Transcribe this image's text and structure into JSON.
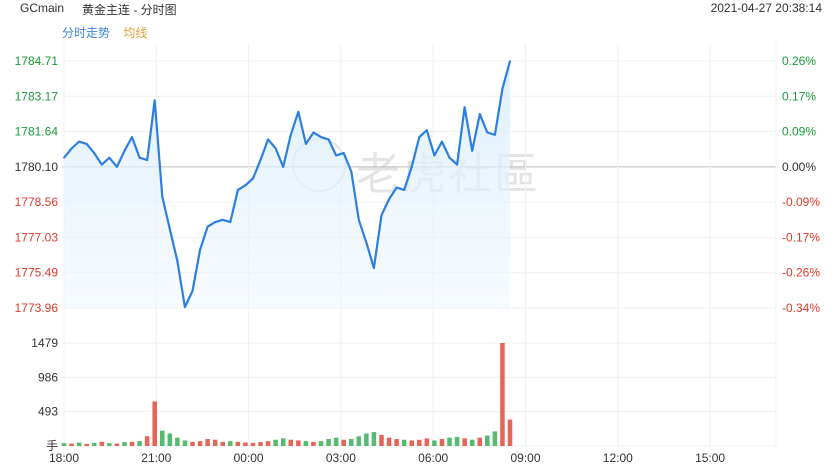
{
  "header": {
    "symbol": "GCmain",
    "name": "黄金主连 - 分时图",
    "datetime": "2021-04-27 20:38:14"
  },
  "tabs": [
    {
      "label": "分时走势",
      "color": "#3f86d8"
    },
    {
      "label": "均线",
      "color": "#e0a33a"
    }
  ],
  "watermark": "老虎社區",
  "colors": {
    "up": "#1a9b3a",
    "down": "#e03a2c",
    "line": "#2c7fe0",
    "vol_up": "#e04a3c",
    "vol_down": "#3aae58"
  },
  "chart_data": {
    "type": "line",
    "prev_close": 1780.1,
    "ylim": [
      1773.96,
      1784.71
    ],
    "y_ticks_left": [
      "1784.71",
      "1783.17",
      "1781.64",
      "1780.10",
      "1778.56",
      "1777.03",
      "1775.49",
      "1773.96"
    ],
    "y_ticks_right": [
      "0.26%",
      "0.17%",
      "0.09%",
      "0.00%",
      "-0.09%",
      "-0.17%",
      "-0.26%",
      "-0.34%"
    ],
    "x_ticks": [
      "18:00",
      "21:00",
      "00:00",
      "03:00",
      "06:00",
      "09:00",
      "12:00",
      "15:00"
    ],
    "series": [
      {
        "x": [
          "18:00",
          "18:15",
          "18:30",
          "18:45",
          "19:00",
          "19:15",
          "19:30",
          "19:45",
          "20:00",
          "20:15",
          "20:30",
          "20:45",
          "21:00",
          "21:15",
          "21:30",
          "21:45",
          "22:00",
          "22:15",
          "22:30",
          "22:45",
          "23:00",
          "23:15",
          "23:30",
          "23:45",
          "00:00",
          "00:15",
          "00:30",
          "00:45",
          "01:00",
          "01:15",
          "01:30",
          "01:45",
          "02:00",
          "02:15",
          "02:30",
          "02:45",
          "03:00",
          "03:15",
          "03:30",
          "03:45",
          "04:00",
          "04:15",
          "04:30",
          "04:45",
          "05:00",
          "05:15",
          "05:30",
          "05:45",
          "06:00",
          "06:15",
          "06:30",
          "06:45",
          "07:00",
          "07:15",
          "07:30",
          "07:45",
          "08:00",
          "08:15",
          "08:30",
          "08:35"
        ],
        "values": [
          1780.5,
          1780.9,
          1781.2,
          1781.1,
          1780.7,
          1780.2,
          1780.5,
          1780.1,
          1780.8,
          1781.4,
          1780.5,
          1780.4,
          1783.0,
          1778.8,
          1777.4,
          1776.0,
          1774.0,
          1774.7,
          1776.5,
          1777.5,
          1777.7,
          1777.8,
          1777.7,
          1779.1,
          1779.3,
          1779.6,
          1780.4,
          1781.3,
          1780.9,
          1780.1,
          1781.5,
          1782.5,
          1781.1,
          1781.6,
          1781.4,
          1781.3,
          1780.6,
          1780.7,
          1779.9,
          1777.8,
          1776.8,
          1775.7,
          1778.0,
          1778.7,
          1779.2,
          1779.1,
          1780.1,
          1781.4,
          1781.7,
          1780.6,
          1781.2,
          1780.5,
          1780.2,
          1782.7,
          1780.8,
          1782.4,
          1781.6,
          1781.5,
          1783.5,
          1784.71
        ]
      }
    ],
    "volume": {
      "ylim": [
        0,
        1479
      ],
      "y_ticks": [
        "1479",
        "986",
        "493",
        "手"
      ],
      "values": [
        40,
        35,
        50,
        30,
        45,
        60,
        40,
        35,
        55,
        60,
        70,
        140,
        640,
        220,
        180,
        120,
        80,
        60,
        70,
        100,
        90,
        60,
        70,
        60,
        50,
        45,
        55,
        70,
        90,
        110,
        90,
        80,
        70,
        60,
        70,
        100,
        120,
        90,
        100,
        140,
        180,
        200,
        160,
        120,
        100,
        90,
        80,
        90,
        110,
        80,
        100,
        120,
        130,
        110,
        90,
        120,
        150,
        210,
        1479,
        380
      ],
      "colors": [
        "down",
        "up",
        "down",
        "up",
        "down",
        "up",
        "down",
        "up",
        "down",
        "up",
        "down",
        "up",
        "up",
        "down",
        "down",
        "down",
        "down",
        "up",
        "up",
        "up",
        "up",
        "up",
        "down",
        "up",
        "up",
        "up",
        "up",
        "up",
        "down",
        "down",
        "up",
        "up",
        "down",
        "up",
        "down",
        "down",
        "down",
        "up",
        "down",
        "down",
        "down",
        "down",
        "up",
        "up",
        "up",
        "down",
        "up",
        "up",
        "up",
        "down",
        "up",
        "down",
        "down",
        "up",
        "down",
        "up",
        "down",
        "down",
        "up",
        "up"
      ]
    }
  }
}
